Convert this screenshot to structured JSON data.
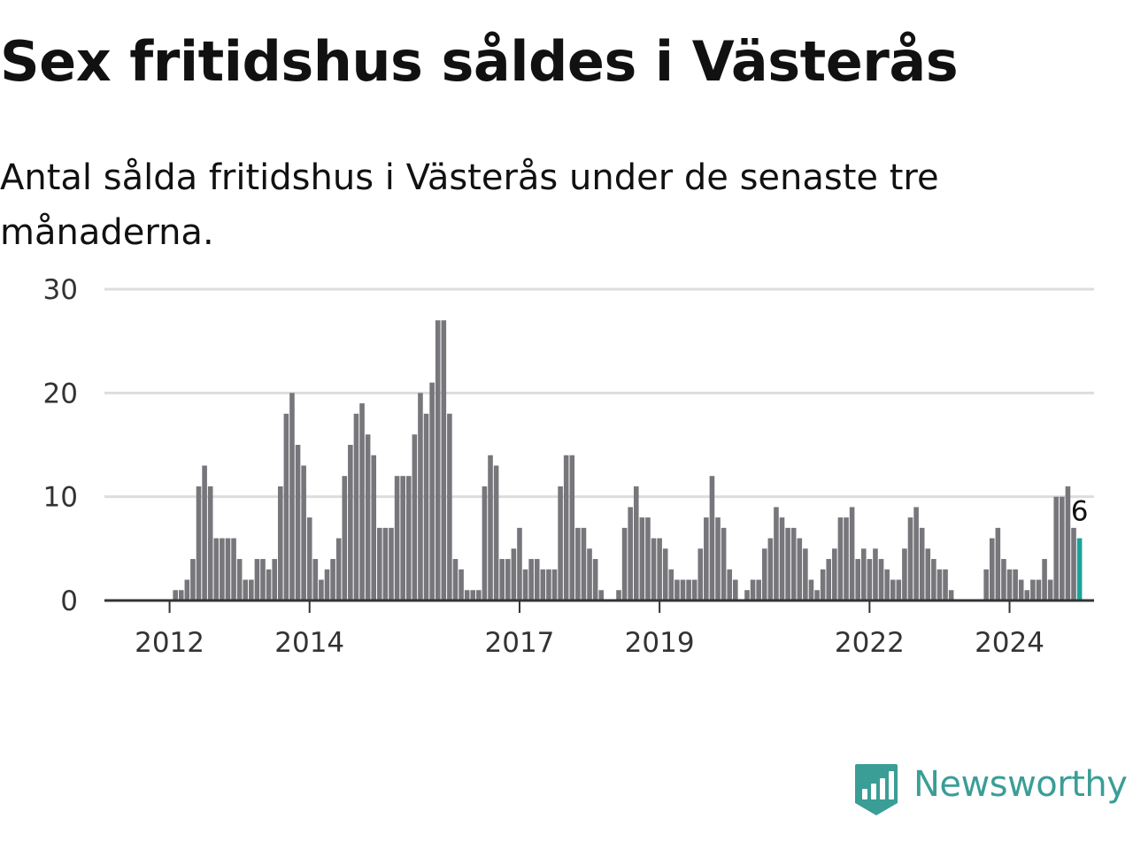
{
  "title": "Sex fritidshus såldes i Västerås",
  "subtitle": "Antal sålda fritidshus i Västerås under de senaste tre månaderna.",
  "brand": {
    "name": "Newsworthy",
    "color": "#3a9e96"
  },
  "colors": {
    "bar": "#77767b",
    "highlight": "#1ba39b",
    "grid": "#dddddd",
    "axis": "#333333"
  },
  "chart_data": {
    "type": "bar",
    "title": "Sex fritidshus såldes i Västerås",
    "subtitle": "Antal sålda fritidshus i Västerås under de senaste tre månaderna.",
    "xlabel": "",
    "ylabel": "",
    "ylim": [
      0,
      30
    ],
    "y_ticks": [
      0,
      10,
      20,
      30
    ],
    "grid": true,
    "start": "2011-10",
    "interval": "month",
    "x_ticks": [
      {
        "label": "2012",
        "index": 3
      },
      {
        "label": "2014",
        "index": 27
      },
      {
        "label": "2017",
        "index": 63
      },
      {
        "label": "2019",
        "index": 87
      },
      {
        "label": "2022",
        "index": 123
      },
      {
        "label": "2024",
        "index": 147
      }
    ],
    "values": [
      0,
      0,
      0,
      0,
      1,
      1,
      2,
      4,
      11,
      13,
      11,
      6,
      6,
      6,
      6,
      4,
      2,
      2,
      4,
      4,
      3,
      4,
      11,
      18,
      20,
      15,
      13,
      8,
      4,
      2,
      3,
      4,
      6,
      12,
      15,
      18,
      19,
      16,
      14,
      7,
      7,
      7,
      12,
      12,
      12,
      16,
      20,
      18,
      21,
      27,
      27,
      18,
      4,
      3,
      1,
      1,
      1,
      11,
      14,
      13,
      4,
      4,
      5,
      7,
      3,
      4,
      4,
      3,
      3,
      3,
      11,
      14,
      14,
      7,
      7,
      5,
      4,
      1,
      0,
      0,
      1,
      7,
      9,
      11,
      8,
      8,
      6,
      6,
      5,
      3,
      2,
      2,
      2,
      2,
      5,
      8,
      12,
      8,
      7,
      3,
      2,
      0,
      1,
      2,
      2,
      5,
      6,
      9,
      8,
      7,
      7,
      6,
      5,
      2,
      1,
      3,
      4,
      5,
      8,
      8,
      9,
      4,
      5,
      4,
      5,
      4,
      3,
      2,
      2,
      5,
      8,
      9,
      7,
      5,
      4,
      3,
      3,
      1,
      0,
      0,
      0,
      0,
      0,
      3,
      6,
      7,
      4,
      3,
      3,
      2,
      1,
      2,
      2,
      4,
      2,
      10,
      10,
      11,
      7,
      6
    ],
    "highlight_index": 159,
    "highlight_label": "6",
    "bar_color": "#77767b",
    "highlight_color": "#1ba39b"
  }
}
